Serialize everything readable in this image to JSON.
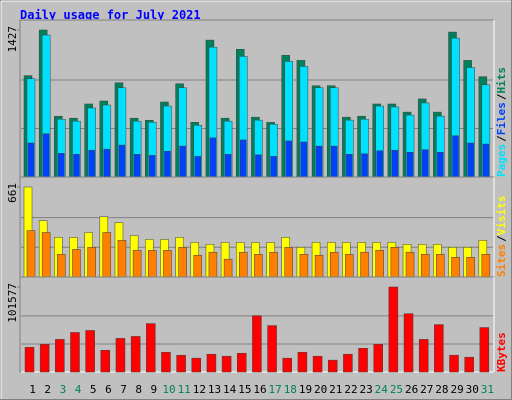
{
  "chart_data": [
    {
      "type": "bar",
      "title": "Daily usage for July 2021",
      "ylim": [
        0,
        1427
      ],
      "yticks": [
        1427
      ],
      "legend_separator": "/",
      "series": [
        {
          "name": "Hits",
          "color": "#00805c",
          "values": [
            984,
            1427,
            590,
            571,
            709,
            738,
            915,
            571,
            551,
            728,
            905,
            531,
            1329,
            571,
            1240,
            581,
            531,
            1181,
            1132,
            886,
            886,
            581,
            590,
            709,
            709,
            630,
            758,
            630,
            1407,
            1132,
            974
          ]
        },
        {
          "name": "Files",
          "color": "#0040ff",
          "values": [
            330,
            420,
            230,
            220,
            260,
            270,
            310,
            220,
            210,
            250,
            300,
            200,
            380,
            220,
            360,
            215,
            200,
            350,
            340,
            300,
            300,
            220,
            225,
            255,
            260,
            240,
            265,
            240,
            400,
            330,
            320
          ]
        },
        {
          "name": "Pages",
          "color": "#00e0ff",
          "values": [
            954,
            1378,
            561,
            542,
            670,
            699,
            866,
            542,
            532,
            689,
            866,
            502,
            1260,
            542,
            1171,
            552,
            512,
            1122,
            1073,
            866,
            866,
            552,
            561,
            689,
            680,
            601,
            719,
            591,
            1348,
            1063,
            895
          ]
        }
      ]
    },
    {
      "type": "bar",
      "ylim": [
        0,
        661
      ],
      "yticks": [
        661
      ],
      "legend_separator": "/",
      "series": [
        {
          "name": "Visits",
          "color": "#ffff00",
          "values": [
            661,
            414,
            291,
            291,
            327,
            443,
            400,
            305,
            276,
            276,
            291,
            254,
            240,
            254,
            254,
            254,
            254,
            291,
            218,
            254,
            254,
            254,
            254,
            254,
            254,
            240,
            240,
            240,
            218,
            218,
            269
          ]
        },
        {
          "name": "Sites",
          "color": "#ff8000",
          "values": [
            341,
            327,
            167,
            203,
            218,
            327,
            269,
            196,
            196,
            196,
            218,
            160,
            182,
            131,
            182,
            167,
            182,
            218,
            167,
            160,
            182,
            167,
            182,
            196,
            218,
            182,
            167,
            167,
            145,
            145,
            167
          ]
        }
      ]
    },
    {
      "type": "bar",
      "ylim": [
        0,
        101577
      ],
      "yticks": [
        101577
      ],
      "categories": [
        "1",
        "2",
        "3",
        "4",
        "5",
        "6",
        "7",
        "8",
        "9",
        "10",
        "11",
        "12",
        "13",
        "14",
        "15",
        "16",
        "17",
        "18",
        "19",
        "20",
        "21",
        "22",
        "23",
        "24",
        "25",
        "26",
        "27",
        "28",
        "29",
        "30",
        "31"
      ],
      "highlight_categories": [
        "3",
        "4",
        "10",
        "11",
        "17",
        "18",
        "24",
        "25",
        "31"
      ],
      "highlight_color": "#00805c",
      "series": [
        {
          "name": "KBytes",
          "color": "#ff0000",
          "values": [
            29529,
            33071,
            38978,
            47245,
            49606,
            25985,
            40159,
            42521,
            57877,
            23623,
            20080,
            16536,
            21260,
            18898,
            22442,
            67327,
            55513,
            16536,
            23623,
            18898,
            14173,
            21260,
            28347,
            33071,
            101577,
            69689,
            38978,
            56695,
            20080,
            17717,
            53152
          ]
        }
      ]
    }
  ]
}
